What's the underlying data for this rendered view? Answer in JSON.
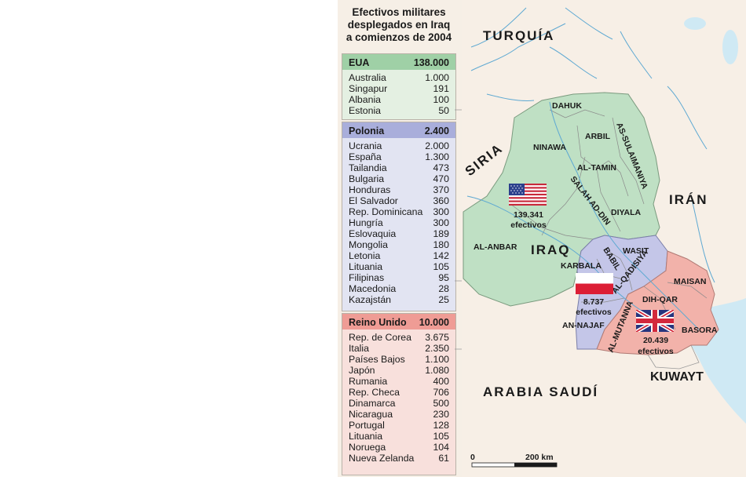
{
  "title": "Efectivos militares desplegados en Iraq a comienzos de 2004",
  "title_lines": [
    "Efectivos militares",
    "desplegados en Iraq",
    "a comienzos de 2004"
  ],
  "groups": [
    {
      "leader": "EUA",
      "total": "138.000",
      "color": "#9fd0a6",
      "members": [
        {
          "country": "Australia",
          "troops": "1.000"
        },
        {
          "country": "Singapur",
          "troops": "191"
        },
        {
          "country": "Albania",
          "troops": "100"
        },
        {
          "country": "Estonia",
          "troops": "50"
        }
      ]
    },
    {
      "leader": "Polonia",
      "total": "2.400",
      "color": "#a9aedb",
      "members": [
        {
          "country": "Ucrania",
          "troops": "2.000"
        },
        {
          "country": "España",
          "troops": "1.300"
        },
        {
          "country": "Tailandia",
          "troops": "473"
        },
        {
          "country": "Bulgaria",
          "troops": "470"
        },
        {
          "country": "Honduras",
          "troops": "370"
        },
        {
          "country": "El Salvador",
          "troops": "360"
        },
        {
          "country": "Rep. Dominicana",
          "troops": "300"
        },
        {
          "country": "Hungría",
          "troops": "300"
        },
        {
          "country": "Eslovaquia",
          "troops": "189"
        },
        {
          "country": "Mongolia",
          "troops": "180"
        },
        {
          "country": "Letonia",
          "troops": "142"
        },
        {
          "country": "Lituania",
          "troops": "105"
        },
        {
          "country": "Filipinas",
          "troops": "95"
        },
        {
          "country": "Macedonia",
          "troops": "28"
        },
        {
          "country": "Kazajstán",
          "troops": "25"
        }
      ]
    },
    {
      "leader": "Reino Unido",
      "total": "10.000",
      "color": "#ef9c95",
      "members": [
        {
          "country": "Rep. de Corea",
          "troops": "3.675"
        },
        {
          "country": "Italia",
          "troops": "2.350"
        },
        {
          "country": "Países Bajos",
          "troops": "1.100"
        },
        {
          "country": "Japón",
          "troops": "1.080"
        },
        {
          "country": "Rumania",
          "troops": "400"
        },
        {
          "country": "Rep. Checa",
          "troops": "706"
        },
        {
          "country": "Dinamarca",
          "troops": "500"
        },
        {
          "country": "Nicaragua",
          "troops": "230"
        },
        {
          "country": "Portugal",
          "troops": "128"
        },
        {
          "country": "Lituania",
          "troops": "105"
        },
        {
          "country": "Noruega",
          "troops": "104"
        },
        {
          "country": "Nueva Zelanda",
          "troops": "61"
        }
      ]
    }
  ],
  "map": {
    "countries": {
      "turkey": "TURQUÍA",
      "syria": "SIRIA",
      "iran": "IRÁN",
      "iraq": "IRAQ",
      "saudi": "ARABIA SAUDÍ",
      "kuwait": "KUWAYT"
    },
    "provinces": {
      "dahuk": "DAHUK",
      "arbil": "ARBIL",
      "ninawa": "NINAWA",
      "sulaimaniya": "AS-SULAIMANIYA",
      "tamin": "AL-TAMIN",
      "salah": "SALAH AD-DIN",
      "diyala": "DIYALA",
      "anbar": "AL-ANBAR",
      "babil": "BABIL",
      "wasit": "WASIT",
      "karbala": "KARBALA",
      "qadisiya": "AL-QADISIYA",
      "maisan": "MAISAN",
      "dhiqar": "DIH-QAR",
      "muthanna": "AL-MUTANNA",
      "najaf": "AN-NAJAF",
      "basora": "BASORA"
    },
    "troop_labels": {
      "us": {
        "count": "139.341",
        "unit": "efectivos"
      },
      "poland": {
        "count": "8.737",
        "unit": "efectivos"
      },
      "uk": {
        "count": "20.439",
        "unit": "efectivos"
      }
    },
    "scale": {
      "start": "0",
      "end": "200 km"
    },
    "colors": {
      "background": "#f7efe6",
      "sea": "#cfe9f4",
      "us_zone": "#bfe0c4",
      "poland_zone": "#c4c6e8",
      "uk_zone": "#f2b2aa",
      "rivers": "#5fa9d2"
    }
  }
}
